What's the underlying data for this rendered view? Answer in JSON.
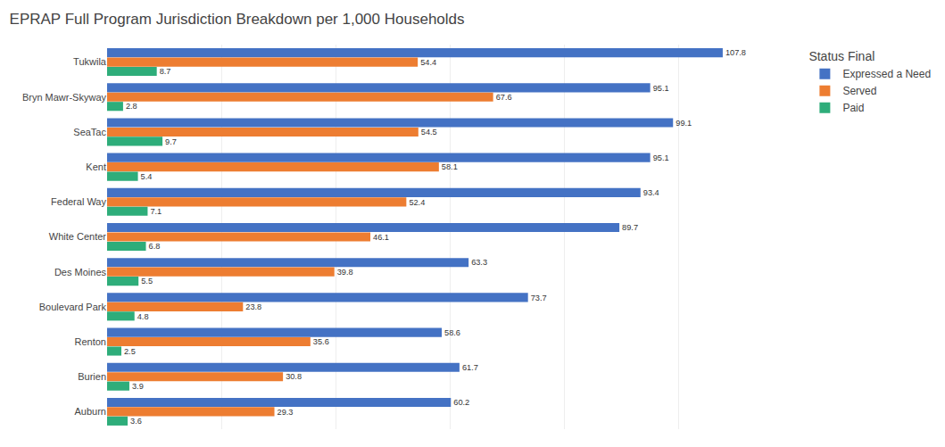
{
  "chart_data": {
    "type": "bar",
    "orientation": "horizontal",
    "title": "EPRAP Full Program Jurisdiction Breakdown per 1,000 Households",
    "categories": [
      "Tukwila",
      "Bryn Mawr-Skyway",
      "SeaTac",
      "Kent",
      "Federal Way",
      "White Center",
      "Des Moines",
      "Boulevard Park",
      "Renton",
      "Burien",
      "Auburn"
    ],
    "series": [
      {
        "name": "Expressed a Need",
        "color": "#4472C4",
        "values": [
          107.8,
          95.1,
          99.1,
          95.1,
          93.4,
          89.7,
          63.3,
          73.7,
          58.6,
          61.7,
          60.2
        ]
      },
      {
        "name": "Served",
        "color": "#ED7D31",
        "values": [
          54.4,
          67.6,
          54.5,
          58.1,
          52.4,
          46.1,
          39.8,
          23.8,
          35.6,
          30.8,
          29.3
        ]
      },
      {
        "name": "Paid",
        "color": "#2EAD7A",
        "values": [
          8.7,
          2.8,
          9.7,
          5.4,
          7.1,
          6.8,
          5.5,
          4.8,
          2.5,
          3.9,
          3.6
        ]
      }
    ],
    "legend_title": "Status Final",
    "legend": "right",
    "xlim": [
      0,
      120
    ],
    "xticks": [
      0,
      20,
      40,
      60,
      80,
      100,
      120
    ],
    "grid": true,
    "tick_labels": "y",
    "data_labels": true
  }
}
